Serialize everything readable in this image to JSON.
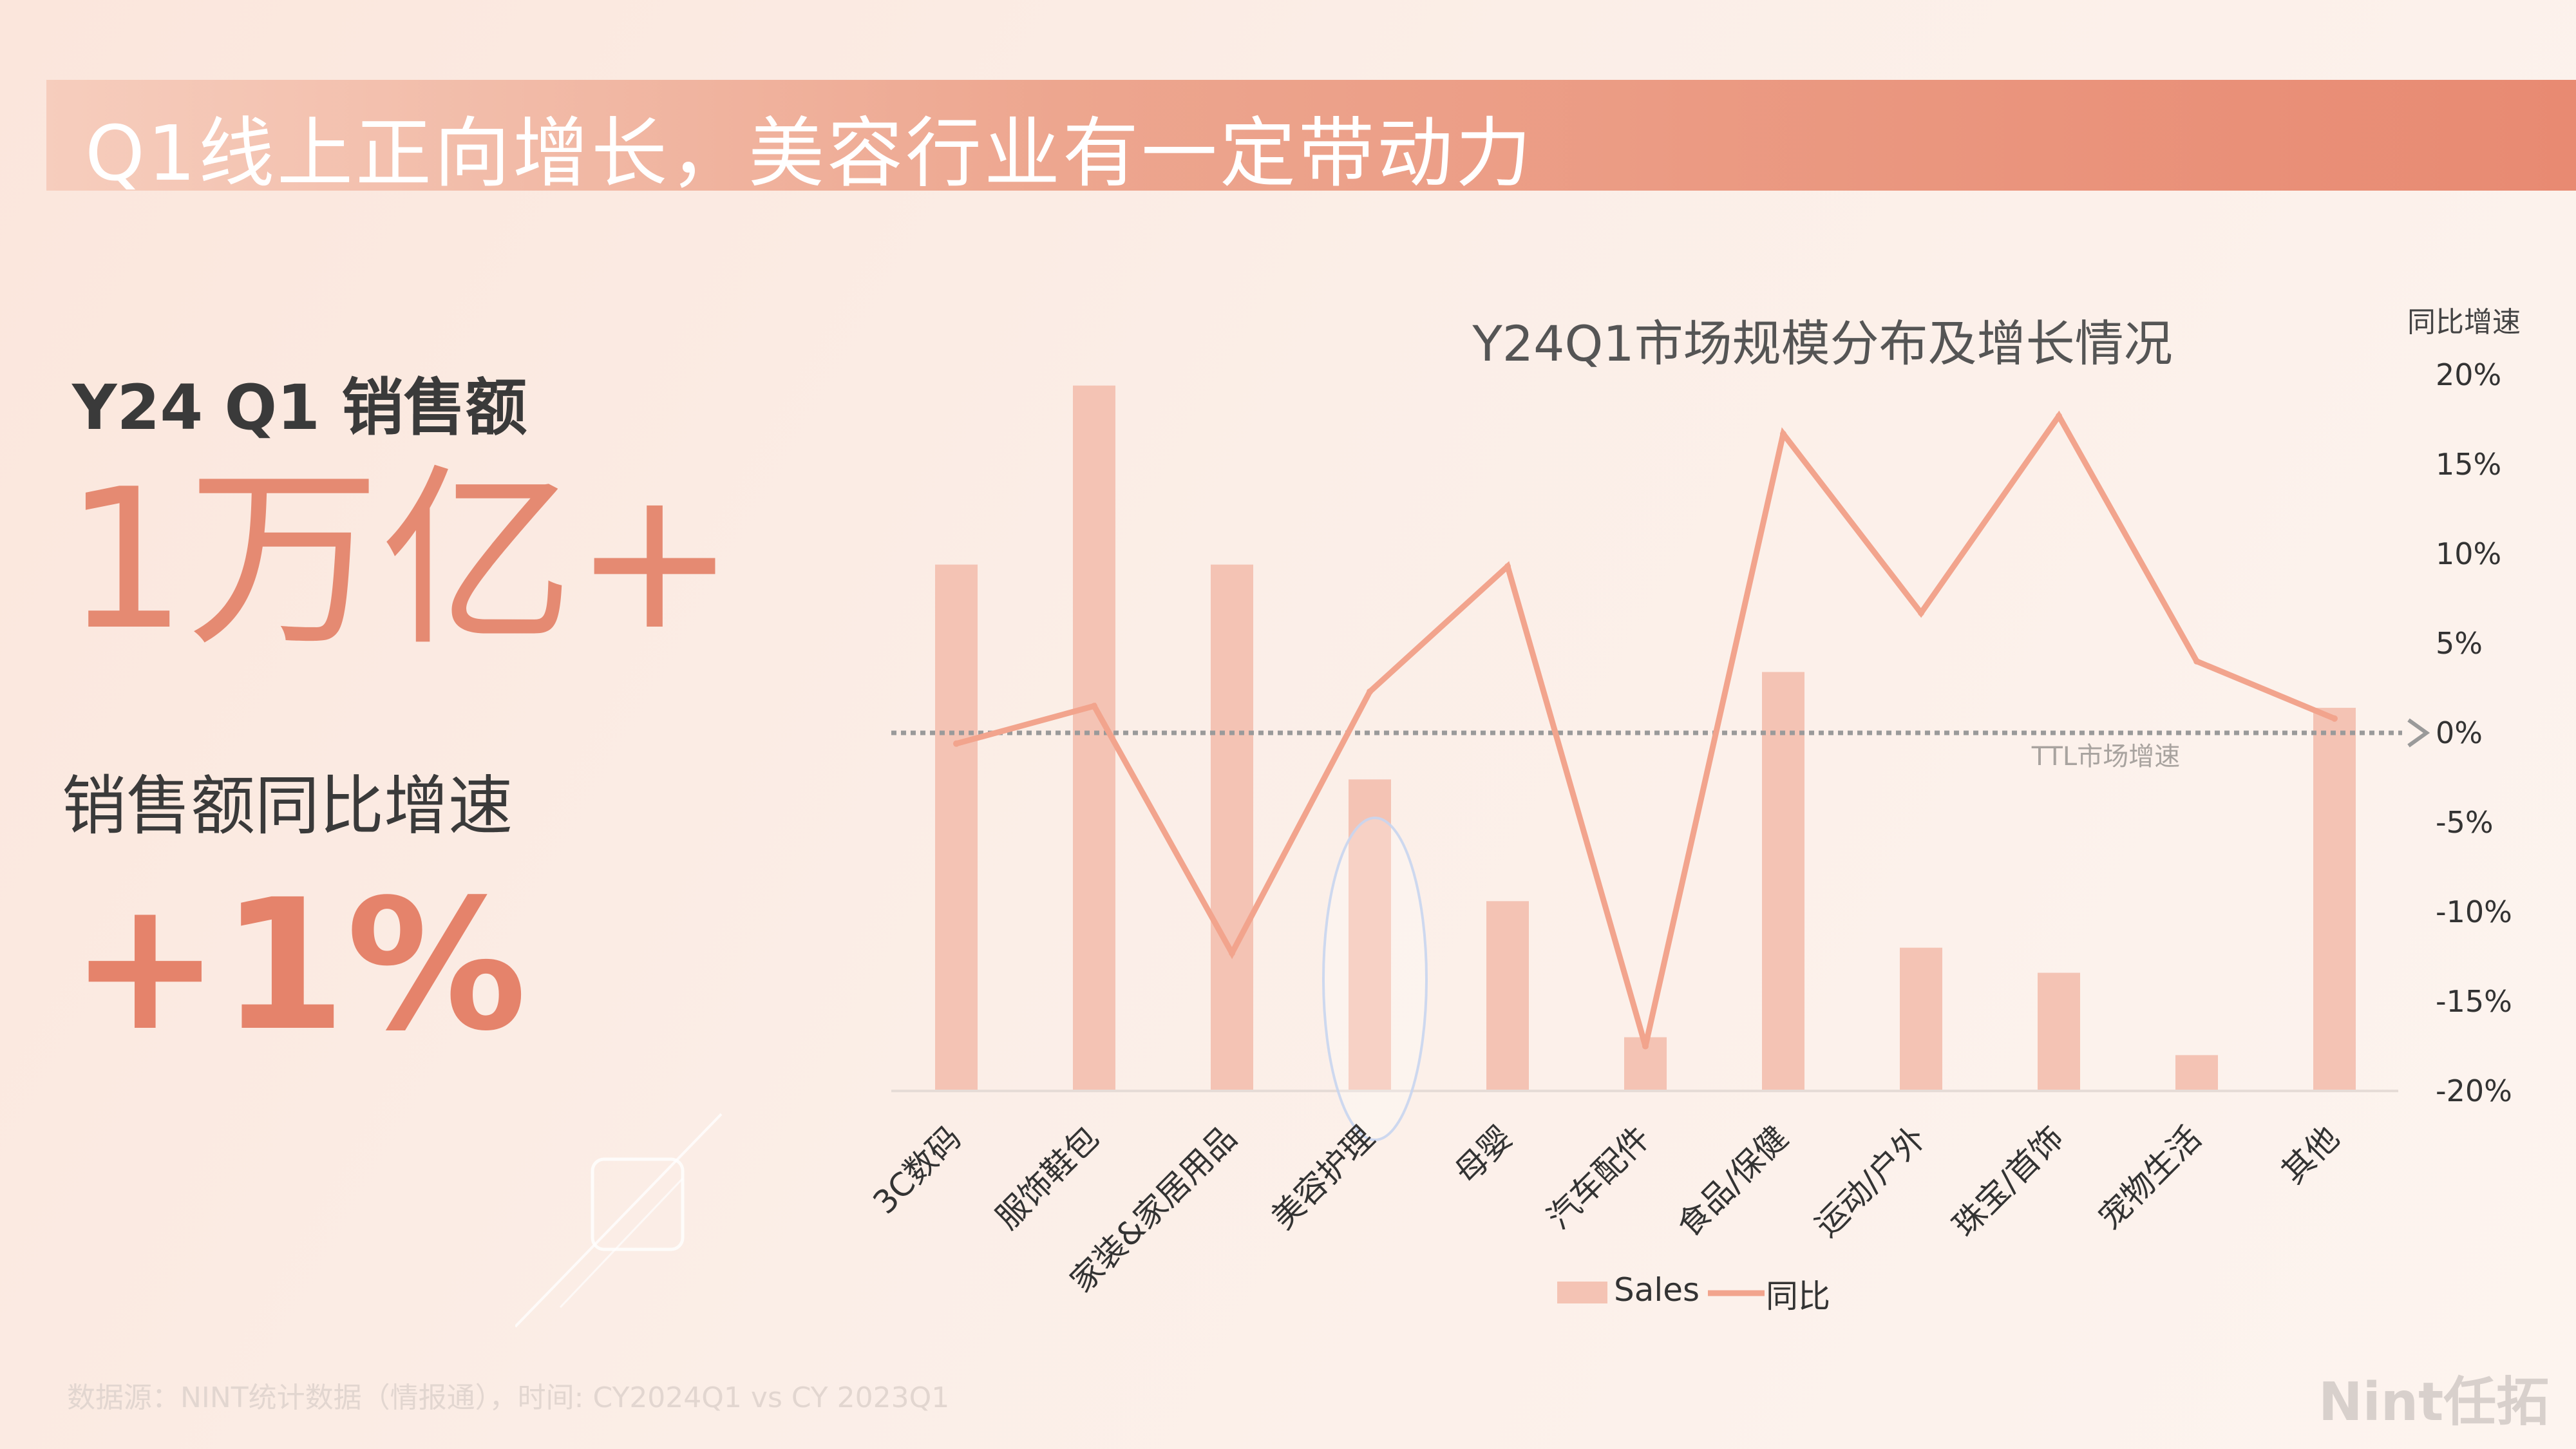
{
  "banner": {
    "title": "Q1线上正向增长，美容行业有一定带动力"
  },
  "kpi": {
    "sales_label": "Y24 Q1 销售额",
    "sales_value": "1万亿+",
    "yoy_label": "销售额同比增速",
    "yoy_value": "+1%"
  },
  "footer": {
    "source": "数据源：NINT统计数据（情报通），时间: CY2024Q1 vs CY 2023Q1",
    "brand": "Nint任拓"
  },
  "colors": {
    "accent": "#e58a72",
    "bar": "#f4c3b4",
    "line": "#f2a48d",
    "banner_end": "#e88a72"
  },
  "chart_data": {
    "type": "bar",
    "title": "Y24Q1市场规模分布及增长情况",
    "categories": [
      "3C数码",
      "服饰鞋包",
      "家装&家居用品",
      "美容护理",
      "母婴",
      "汽车配件",
      "食品/保健",
      "运动/户外",
      "珠宝/首饰",
      "宠物生活",
      "其他"
    ],
    "series": [
      {
        "name": "Sales",
        "type": "bar",
        "axis": "left",
        "values": [
          14.7,
          19.7,
          14.7,
          8.7,
          5.3,
          1.5,
          11.7,
          4.0,
          3.3,
          1.0,
          10.7
        ]
      },
      {
        "name": "同比",
        "type": "line",
        "axis": "right",
        "values": [
          -0.6,
          1.5,
          -12.3,
          2.3,
          9.3,
          -17.5,
          16.7,
          6.7,
          17.7,
          4.0,
          0.8
        ]
      }
    ],
    "y_left_range": [
      0,
      20
    ],
    "y_right_range": [
      -20,
      20
    ],
    "y_right_label": "同比增速",
    "y_right_ticks": [
      "20%",
      "15%",
      "10%",
      "5%",
      "0%",
      "-5%",
      "-10%",
      "-15%",
      "-20%"
    ],
    "reference_line": {
      "label": "TTL市场增速",
      "value": 0
    },
    "highlight_category": "美容护理",
    "legend": [
      "Sales",
      "同比"
    ],
    "legend_position": "bottom"
  }
}
